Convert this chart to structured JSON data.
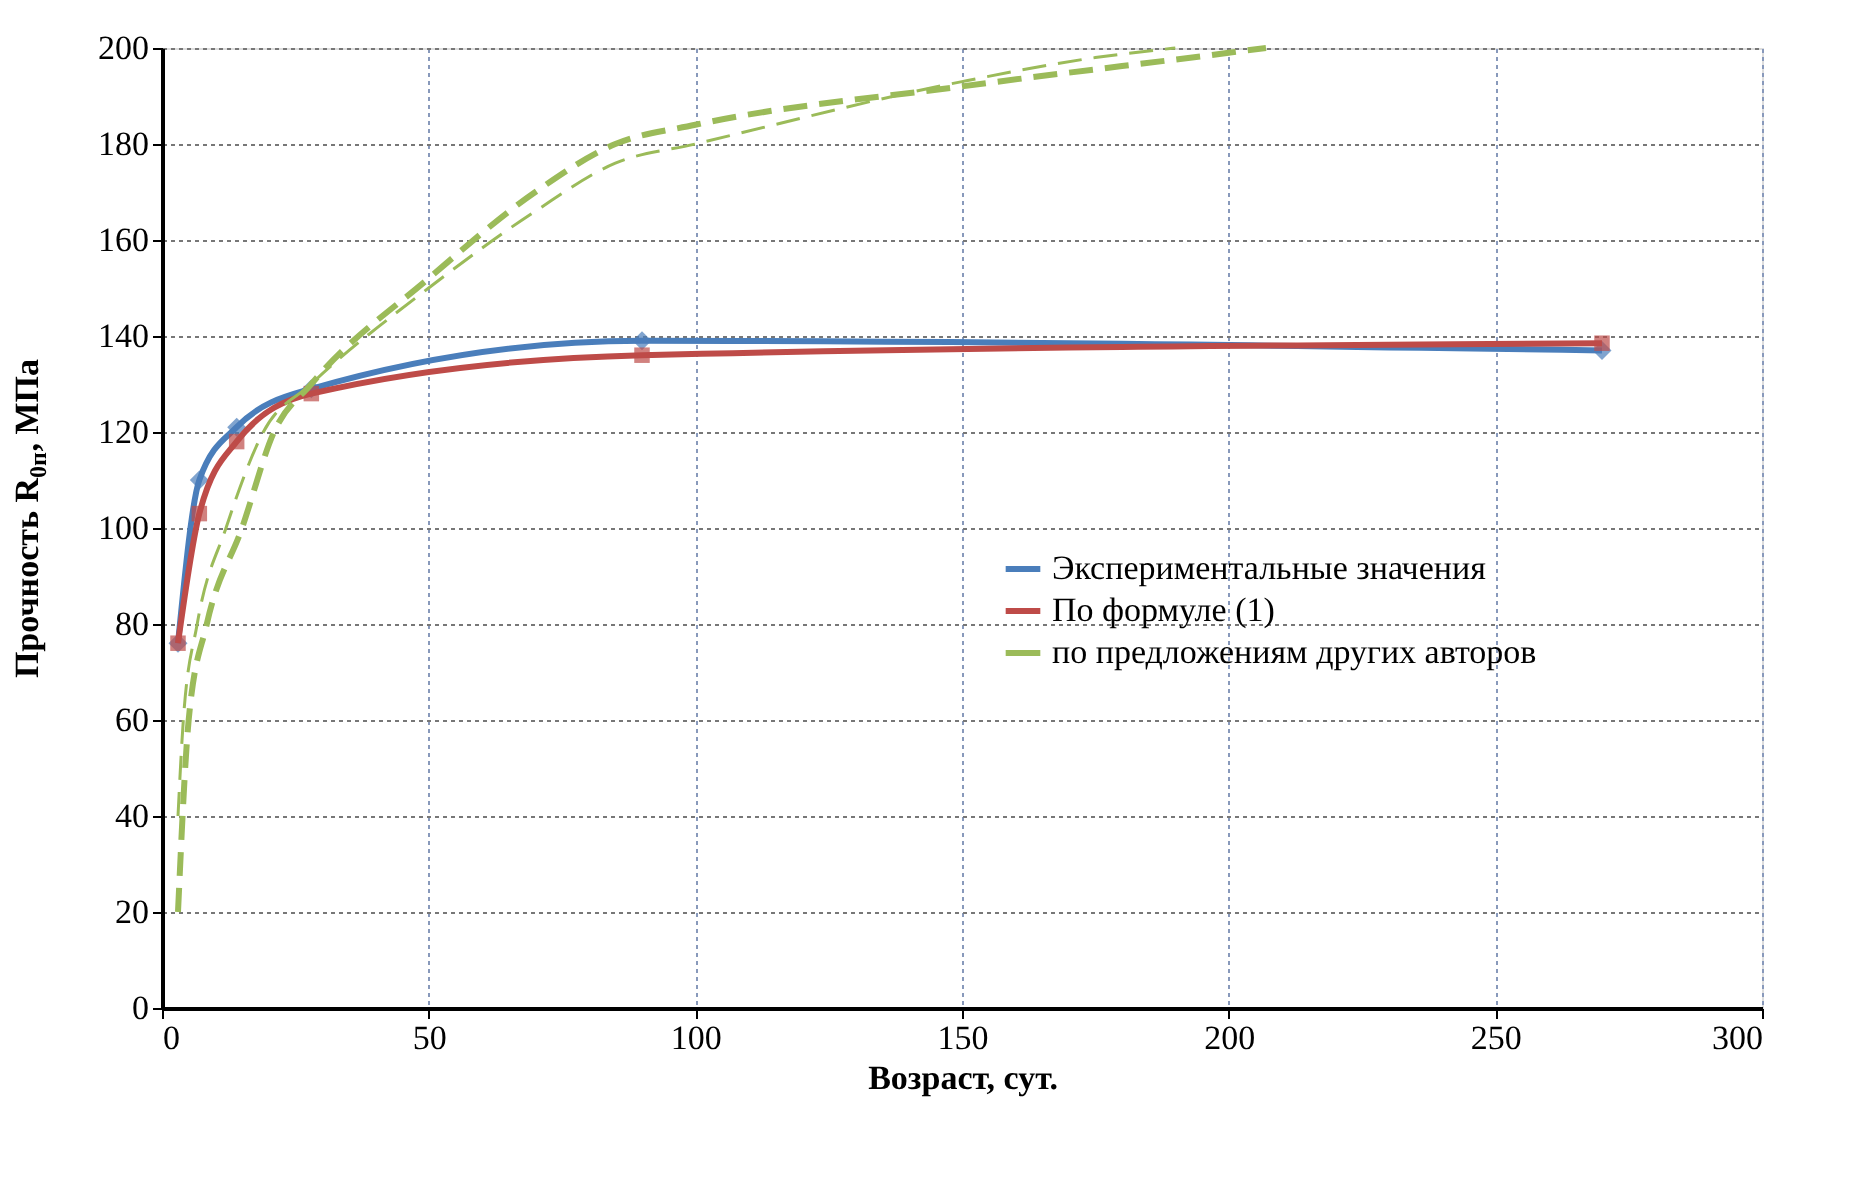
{
  "chart_data": {
    "type": "line",
    "xlabel": "Возраст, сут.",
    "ylabel": "Прочность R$_{0п}$, МПа",
    "xlim": [
      0,
      300
    ],
    "xticks": [
      0,
      50,
      100,
      150,
      200,
      250,
      300
    ],
    "ylim": [
      0,
      200
    ],
    "yticks": [
      0,
      20,
      40,
      60,
      80,
      100,
      120,
      140,
      160,
      180,
      200
    ],
    "grid": true,
    "legend": "right",
    "series": [
      {
        "name": "Экспериментальные значения",
        "color": "#4a7ebb",
        "marker": "diamond",
        "line_style": "solid",
        "x": [
          3,
          7,
          14,
          28,
          90,
          270
        ],
        "values": [
          76,
          110,
          121,
          129,
          139,
          137
        ]
      },
      {
        "name": "По формуле (1)",
        "color": "#be4b48",
        "marker": "square",
        "line_style": "solid",
        "x": [
          3,
          7,
          14,
          28,
          90,
          270
        ],
        "values": [
          76,
          103,
          118,
          128,
          136,
          138.5
        ]
      },
      {
        "name": "по предложениям других авторов",
        "color": "#9bbb59",
        "marker": "none",
        "line_style": "dashed",
        "x": [
          3,
          5,
          8.4,
          15,
          21,
          28,
          50,
          70,
          85,
          100,
          150,
          200,
          207
        ],
        "values": [
          20,
          60,
          80,
          100,
          120,
          130,
          152,
          170,
          180,
          184,
          192,
          199,
          200
        ]
      },
      {
        "color": "#9bbb59",
        "marker": "none",
        "line_style": "dashed",
        "x": [
          3,
          4,
          6.6,
          12,
          19,
          28,
          50,
          70,
          85,
          100,
          150,
          175,
          190
        ],
        "values": [
          40,
          60,
          80,
          100,
          120,
          130,
          150,
          166,
          176,
          180,
          193,
          198,
          200
        ]
      }
    ]
  }
}
